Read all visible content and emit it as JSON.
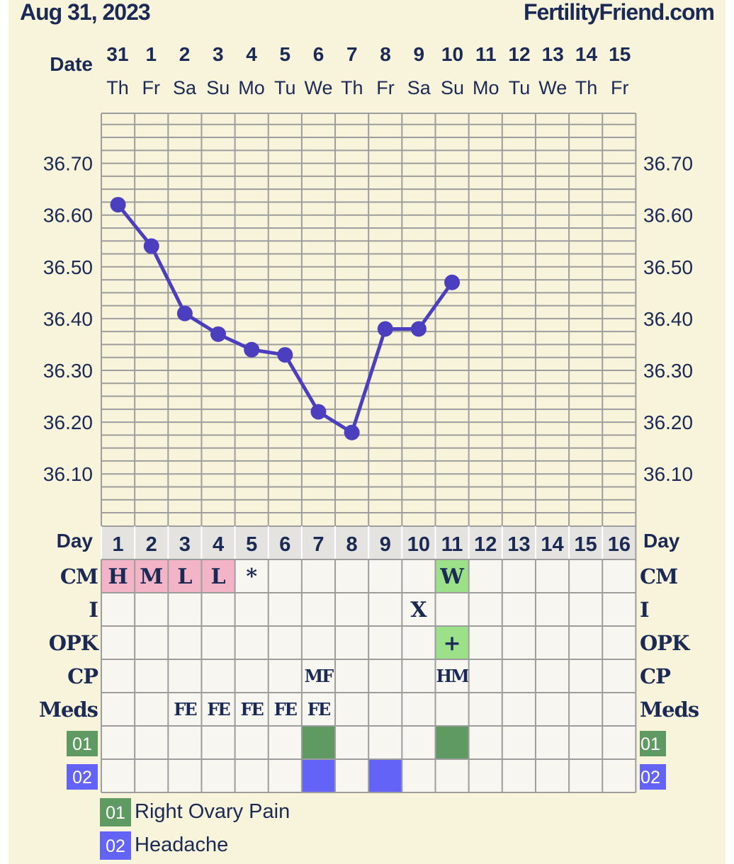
{
  "header": {
    "date": "Aug 31, 2023",
    "site": "FertilityFriend.com"
  },
  "labels": {
    "date": "Date",
    "day": "Day"
  },
  "dates": [
    {
      "num": "31",
      "dow": "Th"
    },
    {
      "num": "1",
      "dow": "Fr"
    },
    {
      "num": "2",
      "dow": "Sa"
    },
    {
      "num": "3",
      "dow": "Su"
    },
    {
      "num": "4",
      "dow": "Mo"
    },
    {
      "num": "5",
      "dow": "Tu"
    },
    {
      "num": "6",
      "dow": "We"
    },
    {
      "num": "7",
      "dow": "Th"
    },
    {
      "num": "8",
      "dow": "Fr"
    },
    {
      "num": "9",
      "dow": "Sa"
    },
    {
      "num": "10",
      "dow": "Su"
    },
    {
      "num": "11",
      "dow": "Mo"
    },
    {
      "num": "12",
      "dow": "Tu"
    },
    {
      "num": "13",
      "dow": "We"
    },
    {
      "num": "14",
      "dow": "Th"
    },
    {
      "num": "15",
      "dow": "Fr"
    }
  ],
  "chart_data": {
    "type": "line",
    "x": [
      1,
      2,
      3,
      4,
      5,
      6,
      7,
      8,
      9,
      10,
      11
    ],
    "values": [
      36.62,
      36.54,
      36.41,
      36.37,
      36.34,
      36.33,
      36.22,
      36.18,
      36.38,
      36.38,
      36.47
    ],
    "y_ticks": [
      "36.10",
      "36.20",
      "36.30",
      "36.40",
      "36.50",
      "36.60",
      "36.70"
    ],
    "ylim": [
      36.0,
      36.8
    ],
    "days": 16,
    "line_color": "#4b3fbf",
    "grid": true
  },
  "rows": [
    {
      "label": "CM",
      "cells": {
        "1": "H",
        "2": "M",
        "3": "L",
        "4": "L",
        "5": "*",
        "11": "W"
      },
      "fills": {
        "1": "#f4b4c8",
        "2": "#f4b4c8",
        "3": "#f4b4c8",
        "4": "#f4b4c8",
        "11": "#9de08a"
      }
    },
    {
      "label": "I",
      "cells": {
        "10": "X"
      },
      "fills": {}
    },
    {
      "label": "OPK",
      "cells": {
        "11": "+"
      },
      "fills": {
        "11": "#9de08a"
      }
    },
    {
      "label": "CP",
      "cells": {
        "7": "MF",
        "11": "HM"
      },
      "fills": {}
    },
    {
      "label": "Meds",
      "cells": {
        "3": "FE",
        "4": "FE",
        "5": "FE",
        "6": "FE",
        "7": "FE"
      },
      "fills": {}
    }
  ],
  "symptoms": [
    {
      "code": "01",
      "name": "Right Ovary Pain",
      "color": "#5f9a63",
      "days": [
        7,
        11
      ]
    },
    {
      "code": "02",
      "name": "Headache",
      "color": "#6364f7",
      "days": [
        7,
        9
      ]
    }
  ]
}
